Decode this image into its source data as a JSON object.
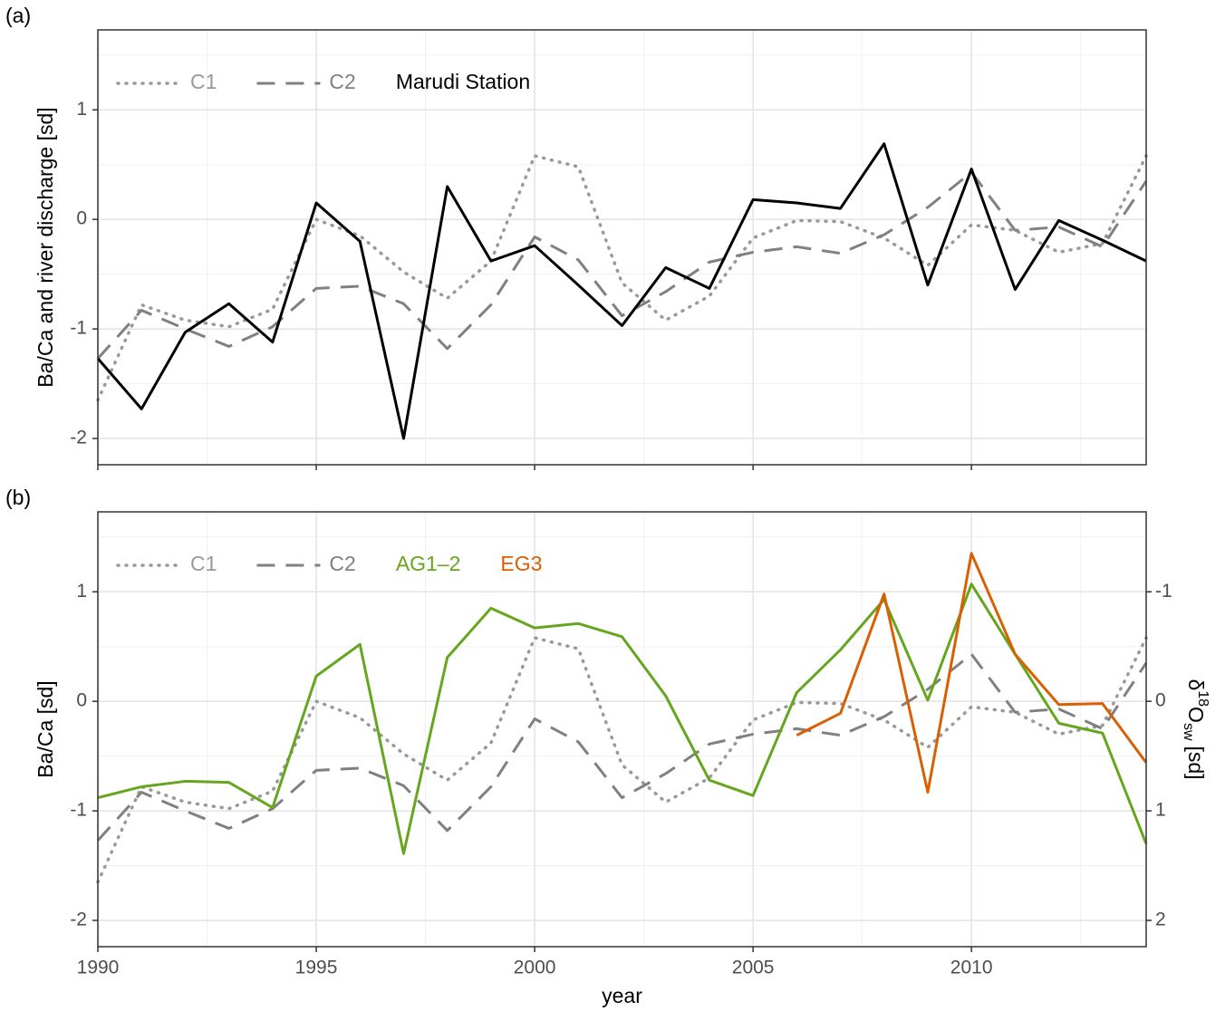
{
  "chart_data": [
    {
      "type": "line",
      "panel_label": "(a)",
      "ylabel": "Ba/Ca and river discharge [sd]",
      "x": [
        1990,
        1991,
        1992,
        1993,
        1994,
        1995,
        1996,
        1997,
        1998,
        1999,
        2000,
        2001,
        2002,
        2003,
        2004,
        2005,
        2006,
        2007,
        2008,
        2009,
        2010,
        2011,
        2012,
        2013,
        2014
      ],
      "series": [
        {
          "name": "C1",
          "color": "#999999",
          "style": "dotted",
          "values": [
            -1.65,
            -0.78,
            -0.92,
            -0.98,
            -0.82,
            0.0,
            -0.15,
            -0.48,
            -0.72,
            -0.38,
            0.58,
            0.48,
            -0.58,
            -0.92,
            -0.7,
            -0.17,
            -0.01,
            -0.02,
            -0.17,
            -0.42,
            -0.05,
            -0.1,
            -0.3,
            -0.22,
            0.58
          ]
        },
        {
          "name": "C2",
          "color": "#808080",
          "style": "dashed",
          "values": [
            -1.27,
            -0.83,
            -1.0,
            -1.16,
            -0.98,
            -0.63,
            -0.61,
            -0.77,
            -1.18,
            -0.78,
            -0.16,
            -0.37,
            -0.88,
            -0.66,
            -0.39,
            -0.3,
            -0.25,
            -0.31,
            -0.14,
            0.11,
            0.43,
            -0.1,
            -0.07,
            -0.25,
            0.35
          ]
        },
        {
          "name": "Marudi Station",
          "color": "#000000",
          "style": "solid",
          "values": [
            -1.27,
            -1.73,
            -1.03,
            -0.77,
            -1.12,
            0.15,
            -0.2,
            -2.0,
            0.3,
            -0.38,
            -0.24,
            -0.6,
            -0.97,
            -0.44,
            -0.63,
            0.18,
            0.15,
            0.1,
            0.69,
            -0.6,
            0.46,
            -0.64,
            -0.01,
            -0.19,
            -0.38
          ]
        }
      ],
      "xlim": [
        1990,
        2014
      ],
      "xticks": [
        1990,
        1995,
        2000,
        2005,
        2010
      ],
      "xtick_labels": false,
      "ylim": [
        -2.24,
        1.73
      ],
      "yticks": [
        -2,
        -1,
        0,
        1
      ],
      "grid": true,
      "legend": "top-left"
    },
    {
      "type": "line",
      "panel_label": "(b)",
      "ylabel": "Ba/Ca [sd]",
      "xlabel": "year",
      "y2label": {
        "symbol": "δ",
        "sup": "18",
        "base": "O",
        "sub": "sw",
        "unit": "[sd]"
      },
      "x": [
        1990,
        1991,
        1992,
        1993,
        1994,
        1995,
        1996,
        1997,
        1998,
        1999,
        2000,
        2001,
        2002,
        2003,
        2004,
        2005,
        2006,
        2007,
        2008,
        2009,
        2010,
        2011,
        2012,
        2013,
        2014
      ],
      "series": [
        {
          "name": "C1",
          "color": "#999999",
          "style": "dotted",
          "values": [
            -1.65,
            -0.78,
            -0.92,
            -0.98,
            -0.82,
            0.0,
            -0.15,
            -0.48,
            -0.72,
            -0.38,
            0.58,
            0.48,
            -0.58,
            -0.92,
            -0.7,
            -0.17,
            -0.01,
            -0.02,
            -0.17,
            -0.42,
            -0.05,
            -0.1,
            -0.3,
            -0.22,
            0.58
          ]
        },
        {
          "name": "C2",
          "color": "#808080",
          "style": "dashed",
          "values": [
            -1.27,
            -0.83,
            -1.0,
            -1.16,
            -0.98,
            -0.63,
            -0.61,
            -0.77,
            -1.18,
            -0.78,
            -0.16,
            -0.37,
            -0.88,
            -0.66,
            -0.39,
            -0.3,
            -0.25,
            -0.31,
            -0.14,
            0.11,
            0.43,
            -0.1,
            -0.07,
            -0.25,
            0.35
          ]
        },
        {
          "name": "AG1–2",
          "color": "#66a61e",
          "style": "solid",
          "axis": "y2",
          "values": [
            0.88,
            0.78,
            0.73,
            0.74,
            0.97,
            -0.23,
            -0.52,
            1.39,
            -0.4,
            -0.85,
            -0.67,
            -0.71,
            -0.59,
            -0.05,
            0.72,
            0.86,
            -0.08,
            -0.47,
            -0.93,
            -0.01,
            -1.07,
            -0.43,
            0.2,
            0.29,
            1.3
          ]
        },
        {
          "name": "EG3",
          "color": "#d95f02",
          "style": "solid",
          "axis": "y2",
          "values": [
            null,
            null,
            null,
            null,
            null,
            null,
            null,
            null,
            null,
            null,
            null,
            null,
            null,
            null,
            null,
            null,
            0.31,
            0.11,
            -0.98,
            0.83,
            -1.35,
            -0.43,
            0.03,
            0.02,
            0.56
          ]
        }
      ],
      "xlim": [
        1990,
        2014
      ],
      "xticks": [
        1990,
        1995,
        2000,
        2005,
        2010
      ],
      "xtick_labels": true,
      "ylim": [
        -2.24,
        1.73
      ],
      "yticks": [
        -2,
        -1,
        0,
        1
      ],
      "y2lim": [
        2.24,
        -1.73
      ],
      "y2ticks": [
        -1,
        0,
        1,
        2
      ],
      "grid": true,
      "legend": "top-left"
    }
  ]
}
